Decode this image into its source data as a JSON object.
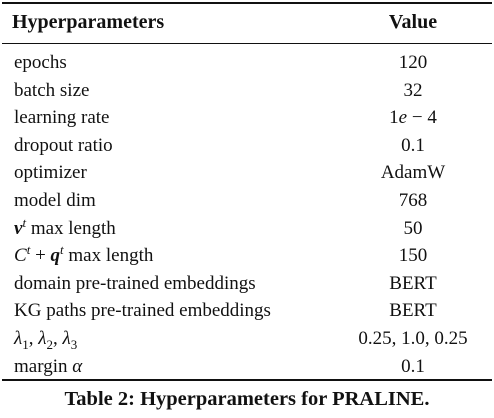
{
  "table": {
    "header": {
      "param": "Hyperparameters",
      "value": "Value"
    },
    "rows": [
      {
        "param": "epochs",
        "value": "120"
      },
      {
        "param": "batch size",
        "value": "32"
      },
      {
        "param": "learning rate",
        "value": "1e − 4"
      },
      {
        "param": "dropout ratio",
        "value": "0.1"
      },
      {
        "param": "optimizer",
        "value": "AdamW"
      },
      {
        "param": "model dim",
        "value": "768"
      },
      {
        "param": "v^t max length",
        "value": "50"
      },
      {
        "param": "C^t + q^t max length",
        "value": "150"
      },
      {
        "param": "domain pre-trained embeddings",
        "value": "BERT"
      },
      {
        "param": "KG paths pre-trained embeddings",
        "value": "BERT"
      },
      {
        "param": "λ1, λ2, λ3",
        "value": "0.25, 1.0, 0.25"
      },
      {
        "param": "margin α",
        "value": "0.1"
      }
    ]
  },
  "caption": "Table 2: Hyperparameters for PRALINE."
}
